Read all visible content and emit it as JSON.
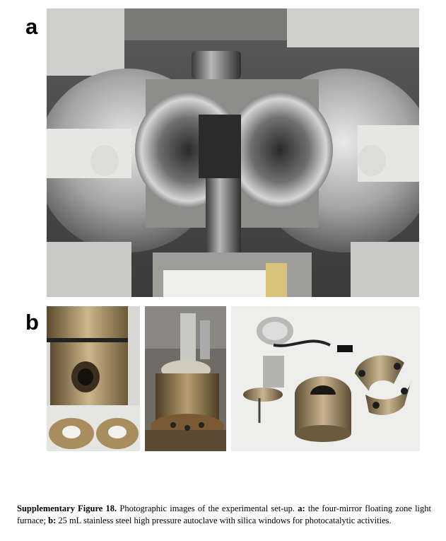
{
  "panels": {
    "a": {
      "letter": "a"
    },
    "b": {
      "letter": "b"
    }
  },
  "caption": {
    "label": "Supplementary Figure 18.",
    "text1": " Photographic images of the experimental set-up. ",
    "a_key": "a:",
    "a_text": " the four-mirror floating zone light furnace; ",
    "b_key": "b:",
    "b_text": " 25 mL stainless steel high pressure autoclave with silica windows for photocatalytic activities."
  }
}
